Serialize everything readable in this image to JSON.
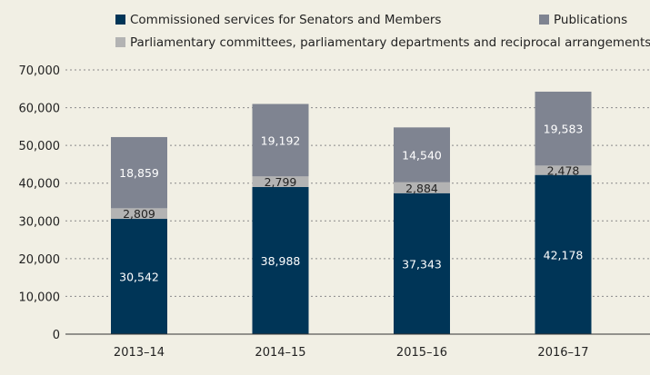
{
  "chart_data": {
    "type": "bar",
    "stacked": true,
    "categories": [
      "2013–14",
      "2014–15",
      "2015–16",
      "2016–17"
    ],
    "series": [
      {
        "name": "Commissioned services for Senators and Members",
        "color": "#003557",
        "label_color": "#ffffff",
        "values": [
          30542,
          38988,
          37343,
          42178
        ]
      },
      {
        "name": "Parliamentary committees, parliamentary departments and reciprocal arrangements",
        "color": "#b3b3b3",
        "label_color": "#222222",
        "values": [
          2809,
          2799,
          2884,
          2478
        ]
      },
      {
        "name": "Publications",
        "color": "#7f8491",
        "label_color": "#ffffff",
        "values": [
          18859,
          19192,
          14540,
          19583
        ]
      }
    ],
    "data_labels": [
      [
        "30,542",
        "38,988",
        "37,343",
        "42,178"
      ],
      [
        "2,809",
        "2,799",
        "2,884",
        "2,478"
      ],
      [
        "18,859",
        "19,192",
        "14,540",
        "19,583"
      ]
    ],
    "yticks": [
      0,
      10000,
      20000,
      30000,
      40000,
      50000,
      60000,
      70000
    ],
    "ytick_labels": [
      "0",
      "10,000",
      "20,000",
      "30,000",
      "40,000",
      "50,000",
      "60,000",
      "70,000"
    ],
    "ylim": [
      0,
      70000
    ],
    "grid": true,
    "legend_placement": "top",
    "title": "",
    "xlabel": "",
    "ylabel": ""
  }
}
